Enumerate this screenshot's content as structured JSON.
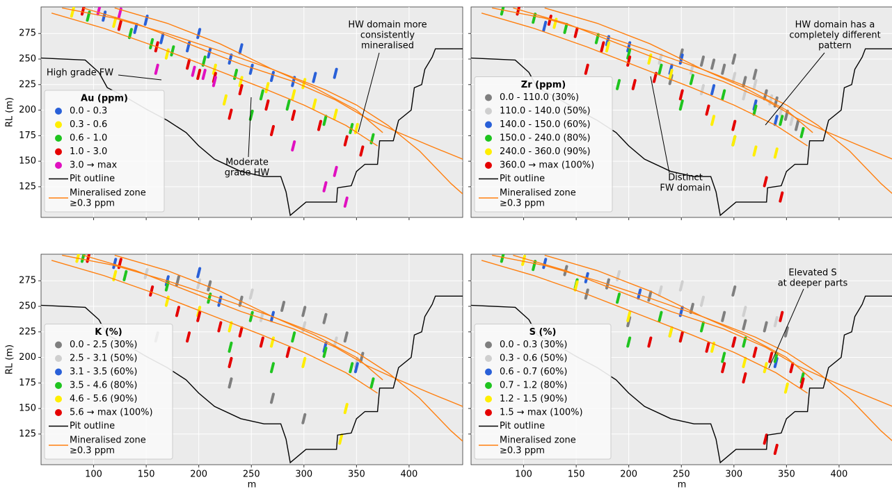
{
  "chart_data": [
    {
      "type": "scatter",
      "legend_title": "Au (ppm)",
      "ylabel": "RL (m)",
      "show_xtick_labels": false,
      "show_ytick_labels": true,
      "grid": true,
      "legend": "lower left",
      "xlim": [
        50,
        451
      ],
      "ylim": [
        95,
        301
      ],
      "xticks": [
        100,
        150,
        200,
        250,
        300,
        350,
        400
      ],
      "yticks": [
        125,
        150,
        175,
        200,
        225,
        250,
        275
      ],
      "series": [
        {
          "name": "0.0 - 0.3",
          "color": "#2960d8",
          "x": [
            110,
            140,
            165,
            190,
            210,
            230,
            250,
            270,
            290,
            310,
            330,
            150,
            200,
            240
          ],
          "y": [
            292,
            280,
            270,
            262,
            256,
            250,
            240,
            233,
            228,
            232,
            236,
            288,
            275,
            260
          ]
        },
        {
          "name": "0.3 - 0.6",
          "color": "#ffee00",
          "x": [
            80,
            120,
            170,
            215,
            240,
            265,
            290,
            310,
            330,
            350,
            225,
            300
          ],
          "y": [
            296,
            286,
            255,
            240,
            228,
            222,
            215,
            206,
            196,
            182,
            210,
            226
          ]
        },
        {
          "name": "0.6 - 1.0",
          "color": "#1fc41f",
          "x": [
            95,
            135,
            175,
            205,
            235,
            260,
            285,
            320,
            345,
            365,
            155,
            250
          ],
          "y": [
            292,
            275,
            258,
            248,
            235,
            215,
            205,
            190,
            182,
            172,
            265,
            195
          ]
        },
        {
          "name": "1.0 - 3.0",
          "color": "#e50000",
          "x": [
            90,
            125,
            160,
            190,
            215,
            240,
            265,
            290,
            315,
            340,
            355,
            230,
            200,
            270
          ],
          "y": [
            298,
            283,
            262,
            245,
            232,
            220,
            205,
            195,
            185,
            170,
            160,
            196,
            235,
            180
          ]
        },
        {
          "name": "3.0 → max",
          "color": "#e010c0",
          "x": [
            105,
            125,
            160,
            205,
            215,
            330,
            340,
            320,
            290,
            195
          ],
          "y": [
            298,
            295,
            240,
            235,
            228,
            140,
            110,
            125,
            165,
            238
          ]
        }
      ],
      "annotations": [
        {
          "lines": [
            "High grade FW"
          ]
        },
        {
          "lines": [
            "HW domain more",
            "consistently",
            "mineralised"
          ]
        },
        {
          "lines": [
            "Moderate",
            "grade HW"
          ]
        }
      ]
    },
    {
      "type": "scatter",
      "legend_title": "Zr (ppm)",
      "show_xtick_labels": false,
      "show_ytick_labels": false,
      "grid": true,
      "legend": "lower left",
      "xlim": [
        50,
        451
      ],
      "ylim": [
        95,
        301
      ],
      "xticks": [
        100,
        150,
        200,
        250,
        300,
        350,
        400
      ],
      "yticks": [
        125,
        150,
        175,
        200,
        225,
        250,
        275
      ],
      "series": [
        {
          "name": "0.0 - 110.0 (30%)",
          "color": "#7f7f7f",
          "x": [
            250,
            270,
            290,
            310,
            320,
            330,
            340,
            350,
            360,
            300,
            280,
            240
          ],
          "y": [
            255,
            248,
            240,
            228,
            235,
            215,
            208,
            195,
            185,
            250,
            245,
            230
          ]
        },
        {
          "name": "110.0 - 140.0 (50%)",
          "color": "#cfcfcf",
          "x": [
            230,
            260,
            300,
            320,
            335,
            345,
            355,
            310,
            270
          ],
          "y": [
            250,
            240,
            232,
            225,
            210,
            200,
            190,
            215,
            220
          ]
        },
        {
          "name": "140.0 - 150.0 (60%)",
          "color": "#2960d8",
          "x": [
            120,
            200,
            240,
            280,
            320,
            340,
            250,
            180
          ],
          "y": [
            282,
            262,
            240,
            220,
            205,
            190,
            250,
            268
          ]
        },
        {
          "name": "150.0 - 240.0 (80%)",
          "color": "#1fc41f",
          "x": [
            80,
            110,
            140,
            170,
            200,
            230,
            260,
            290,
            320,
            345,
            365,
            190,
            250,
            300
          ],
          "y": [
            298,
            290,
            280,
            270,
            255,
            240,
            230,
            215,
            200,
            190,
            178,
            225,
            205,
            170
          ]
        },
        {
          "name": "240.0 - 360.0 (90%)",
          "color": "#ffee00",
          "x": [
            130,
            180,
            240,
            280,
            300,
            320,
            340,
            220
          ],
          "y": [
            285,
            262,
            235,
            190,
            170,
            160,
            158,
            250
          ]
        },
        {
          "name": "360.0 → max  (100%)",
          "color": "#e50000",
          "x": [
            95,
            125,
            150,
            175,
            200,
            225,
            250,
            275,
            300,
            330,
            345,
            160,
            205
          ],
          "y": [
            298,
            288,
            276,
            262,
            248,
            232,
            215,
            200,
            185,
            130,
            115,
            240,
            225
          ]
        }
      ],
      "annotations": [
        {
          "lines": [
            "HW domain has a",
            "completely different",
            "pattern"
          ]
        },
        {
          "lines": [
            "Distinct",
            "FW domain"
          ]
        }
      ]
    },
    {
      "type": "scatter",
      "legend_title": "K (%)",
      "ylabel": "RL (m)",
      "xlabel": "m",
      "show_xtick_labels": true,
      "show_ytick_labels": true,
      "grid": true,
      "legend": "lower left",
      "xlim": [
        50,
        451
      ],
      "ylim": [
        95,
        301
      ],
      "xticks": [
        100,
        150,
        200,
        250,
        300,
        350,
        400
      ],
      "yticks": [
        125,
        150,
        175,
        200,
        225,
        250,
        275
      ],
      "series": [
        {
          "name": "0.0 - 2.5 (30%)",
          "color": "#7f7f7f",
          "x": [
            180,
            210,
            240,
            280,
            300,
            320,
            340,
            355,
            270,
            230,
            160,
            300
          ],
          "y": [
            275,
            270,
            255,
            250,
            245,
            238,
            220,
            200,
            160,
            175,
            220,
            140
          ]
        },
        {
          "name": "2.5 - 3.1 (50%)",
          "color": "#cfcfcf",
          "x": [
            150,
            200,
            260,
            300,
            330,
            350,
            250
          ],
          "y": [
            282,
            272,
            240,
            230,
            215,
            195,
            262
          ]
        },
        {
          "name": "3.1 - 3.5 (60%)",
          "color": "#2960d8",
          "x": [
            120,
            170,
            220,
            270,
            320,
            350,
            200
          ],
          "y": [
            292,
            275,
            255,
            240,
            210,
            190,
            283
          ]
        },
        {
          "name": "3.5 - 4.6 (80%)",
          "color": "#1fc41f",
          "x": [
            90,
            130,
            170,
            210,
            250,
            290,
            320,
            345,
            365,
            230,
            270
          ],
          "y": [
            298,
            280,
            270,
            258,
            240,
            220,
            205,
            190,
            175,
            210,
            190
          ]
        },
        {
          "name": "4.6 - 5.6 (90%)",
          "color": "#ffee00",
          "x": [
            85,
            120,
            170,
            230,
            270,
            300,
            340,
            335,
            200
          ],
          "y": [
            298,
            280,
            255,
            230,
            215,
            195,
            150,
            120,
            245
          ]
        },
        {
          "name": "5.6 → max  (100%)",
          "color": "#e50000",
          "x": [
            95,
            125,
            155,
            180,
            200,
            220,
            240,
            260,
            285,
            230,
            190
          ],
          "y": [
            298,
            292,
            265,
            245,
            240,
            230,
            225,
            215,
            205,
            195,
            220
          ]
        }
      ],
      "annotations": []
    },
    {
      "type": "scatter",
      "legend_title": "S (%)",
      "xlabel": "m",
      "show_xtick_labels": true,
      "show_ytick_labels": false,
      "grid": true,
      "legend": "lower left",
      "xlim": [
        50,
        451
      ],
      "ylim": [
        95,
        301
      ],
      "xticks": [
        100,
        150,
        200,
        250,
        300,
        350,
        400
      ],
      "yticks": [
        125,
        150,
        175,
        200,
        225,
        250,
        275
      ],
      "series": [
        {
          "name": "0.0 - 0.3 (30%)",
          "color": "#7f7f7f",
          "x": [
            140,
            180,
            220,
            260,
            290,
            310,
            330,
            350,
            240,
            200,
            160,
            300
          ],
          "y": [
            285,
            272,
            260,
            248,
            240,
            232,
            230,
            225,
            225,
            235,
            262,
            265
          ]
        },
        {
          "name": "0.3 - 0.6 (50%)",
          "color": "#cfcfcf",
          "x": [
            190,
            230,
            270,
            310,
            340,
            250
          ],
          "y": [
            280,
            265,
            255,
            245,
            235,
            270
          ]
        },
        {
          "name": "0.6 - 0.7 (60%)",
          "color": "#2960d8",
          "x": [
            120,
            160,
            210,
            250,
            300,
            340
          ],
          "y": [
            292,
            278,
            262,
            245,
            215,
            195
          ]
        },
        {
          "name": "0.7 - 1.2 (80%)",
          "color": "#1fc41f",
          "x": [
            80,
            110,
            150,
            190,
            230,
            270,
            310,
            340,
            365,
            250,
            290,
            200
          ],
          "y": [
            298,
            290,
            272,
            258,
            240,
            230,
            215,
            200,
            180,
            220,
            200,
            215
          ]
        },
        {
          "name": "1.2 - 1.5 (90%)",
          "color": "#ffee00",
          "x": [
            100,
            150,
            200,
            240,
            280,
            310,
            330,
            350
          ],
          "y": [
            295,
            270,
            240,
            225,
            210,
            195,
            190,
            170
          ]
        },
        {
          "name": "1.5 → max  (100%)",
          "color": "#e50000",
          "x": [
            220,
            250,
            275,
            300,
            320,
            335,
            345,
            355,
            365,
            290,
            310,
            330,
            340
          ],
          "y": [
            215,
            220,
            210,
            215,
            205,
            200,
            240,
            190,
            175,
            190,
            180,
            120,
            110
          ]
        }
      ],
      "annotations": [
        {
          "lines": [
            "Elevated S",
            "at deeper parts"
          ]
        }
      ]
    }
  ],
  "pit_outline": {
    "name": "Pit outline",
    "color": "#000000",
    "x": [
      50,
      92,
      105,
      113,
      130,
      150,
      170,
      188,
      200,
      215,
      240,
      262,
      278,
      283,
      287,
      302,
      331,
      332,
      345,
      350,
      358,
      370,
      372,
      385,
      390,
      402,
      405,
      412,
      415,
      422,
      425,
      440,
      451
    ],
    "y": [
      251,
      249,
      237,
      222,
      213,
      201,
      190,
      178,
      165,
      152,
      140,
      135,
      135,
      120,
      97,
      110,
      110,
      124,
      126,
      140,
      147,
      147,
      170,
      170,
      190,
      200,
      222,
      225,
      240,
      252,
      260,
      260,
      260
    ]
  },
  "mineralised_zone": {
    "name": [
      "Mineralised zone",
      "≥0.3 ppm"
    ],
    "color": "#ff7f0e",
    "lines": [
      {
        "x": [
          70,
          120,
          170,
          220,
          270,
          320,
          350,
          380,
          410,
          440,
          451
        ],
        "y": [
          300,
          290,
          275,
          258,
          240,
          220,
          205,
          185,
          160,
          128,
          118
        ]
      },
      {
        "x": [
          90,
          140,
          190,
          240,
          290,
          330,
          360,
          390,
          420,
          451
        ],
        "y": [
          300,
          285,
          265,
          245,
          228,
          210,
          192,
          178,
          165,
          152
        ]
      },
      {
        "x": [
          60,
          110,
          160,
          210,
          260,
          300,
          340,
          370
        ],
        "y": [
          295,
          280,
          262,
          242,
          222,
          205,
          185,
          165
        ]
      },
      {
        "x": [
          120,
          170,
          220,
          270,
          310,
          350,
          375
        ],
        "y": [
          300,
          285,
          265,
          240,
          222,
          200,
          178
        ]
      }
    ]
  }
}
